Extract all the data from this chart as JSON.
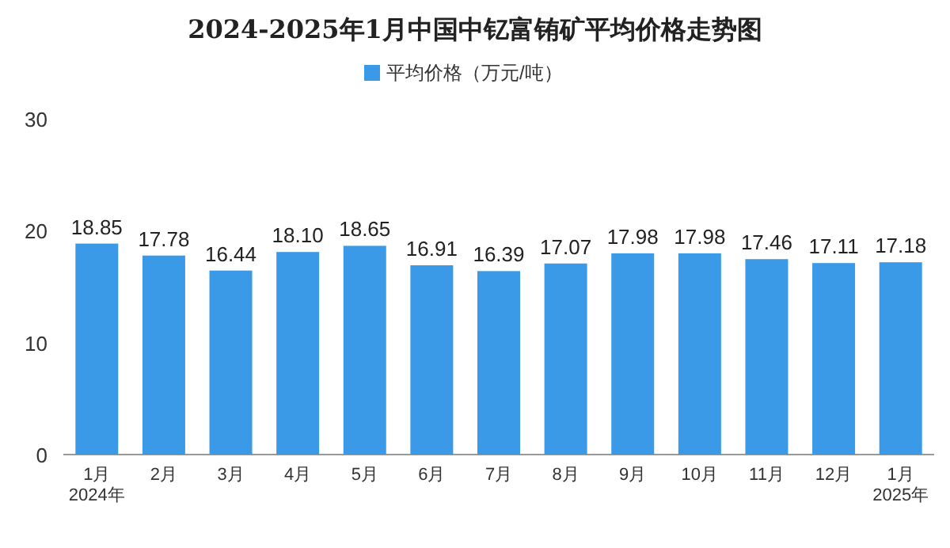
{
  "chart_data": {
    "type": "bar",
    "title": "2024-2025年1月中国中钇富铕矿平均价格走势图",
    "categories": [
      "1月\n2024年",
      "2月",
      "3月",
      "4月",
      "5月",
      "6月",
      "7月",
      "8月",
      "9月",
      "10月",
      "11月",
      "12月",
      "1月\n2025年"
    ],
    "series": [
      {
        "name": "平均价格（万元/吨）",
        "color": "#3a9ae8",
        "values": [
          18.85,
          17.78,
          16.44,
          18.1,
          18.65,
          16.91,
          16.39,
          17.07,
          17.98,
          17.98,
          17.46,
          17.11,
          17.18
        ],
        "value_labels": [
          "18.85",
          "17.78",
          "16.44",
          "18.10",
          "18.65",
          "16.91",
          "16.39",
          "17.07",
          "17.98",
          "17.98",
          "17.46",
          "17.11",
          "17.18"
        ]
      }
    ],
    "ylim": [
      0,
      30
    ],
    "yticks": [
      0,
      10,
      20,
      30
    ],
    "legend": "top"
  }
}
